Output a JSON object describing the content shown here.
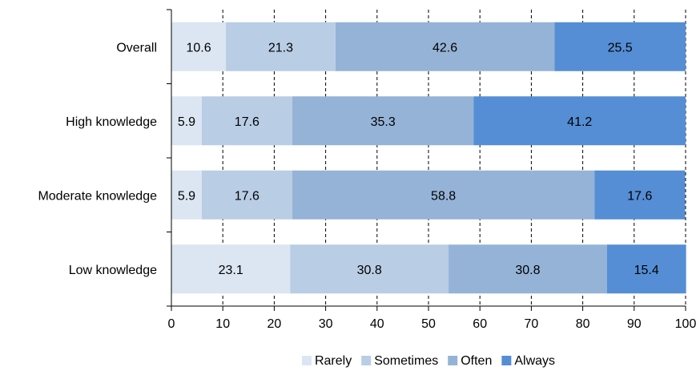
{
  "chart_data": {
    "type": "bar",
    "orientation": "horizontal",
    "stacked": true,
    "title": "",
    "xlabel": "",
    "ylabel": "",
    "xlim": [
      0,
      100
    ],
    "x_ticks": [
      0,
      10,
      20,
      30,
      40,
      50,
      60,
      70,
      80,
      90,
      100
    ],
    "grid": "vertical dashed",
    "legend_position": "bottom",
    "categories": [
      "Overall",
      "High knowledge",
      "Moderate knowledge",
      "Low knowledge"
    ],
    "series": [
      {
        "name": "Rarely",
        "color": "#dce6f2",
        "values": [
          10.6,
          5.9,
          5.9,
          23.1
        ],
        "labels": [
          "10.6",
          "5.9",
          "5.9",
          "23.1"
        ]
      },
      {
        "name": "Sometimes",
        "color": "#b9cde5",
        "values": [
          21.3,
          17.6,
          17.6,
          30.8
        ],
        "labels": [
          "21.3",
          "17.6",
          "17.6",
          "30.8"
        ]
      },
      {
        "name": "Often",
        "color": "#95b3d7",
        "values": [
          42.6,
          35.3,
          58.8,
          30.8
        ],
        "labels": [
          "42.6",
          "35.3",
          "58.8",
          "30.8"
        ]
      },
      {
        "name": "Always",
        "color": "#558ed5",
        "values": [
          25.5,
          41.2,
          17.6,
          15.4
        ],
        "labels": [
          "25.5",
          "41.2",
          "17.6",
          "15.4"
        ]
      }
    ]
  }
}
